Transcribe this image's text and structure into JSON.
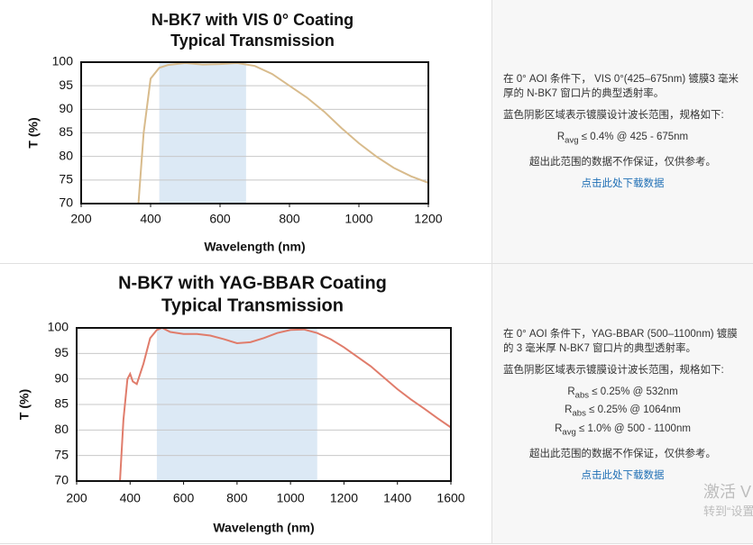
{
  "chart_data": [
    {
      "type": "line",
      "title": "N-BK7 with VIS 0° Coating",
      "subtitle": "Typical Transmission",
      "x_label": "Wavelength (nm)",
      "y_label": "T (%)",
      "x": [
        365,
        380,
        400,
        425,
        450,
        500,
        550,
        600,
        650,
        700,
        750,
        800,
        850,
        900,
        950,
        1000,
        1050,
        1100,
        1150,
        1200
      ],
      "series": [
        {
          "color": "#d8bb8c",
          "values": [
            70,
            85,
            96.5,
            98.8,
            99.4,
            99.8,
            99.5,
            99.6,
            99.8,
            99.2,
            97.5,
            95,
            92.5,
            89.5,
            86,
            82.8,
            80,
            77.6,
            75.8,
            74.4
          ]
        }
      ],
      "shaded_range": [
        425,
        675
      ],
      "shade_color": "#dce9f5",
      "xlim": [
        200,
        1200
      ],
      "ylim": [
        70,
        100
      ],
      "xticks": [
        200,
        400,
        600,
        800,
        1000,
        1200
      ],
      "yticks": [
        70,
        75,
        80,
        85,
        90,
        95,
        100
      ],
      "grid": true
    },
    {
      "type": "line",
      "title": "N-BK7 with YAG-BBAR Coating",
      "subtitle": "Typical Transmission",
      "x_label": "Wavelength (nm)",
      "y_label": "T (%)",
      "x": [
        362,
        375,
        390,
        400,
        410,
        425,
        450,
        475,
        500,
        520,
        550,
        600,
        650,
        700,
        750,
        800,
        850,
        900,
        950,
        1000,
        1050,
        1100,
        1150,
        1200,
        1300,
        1400,
        1450,
        1500,
        1550,
        1600
      ],
      "series": [
        {
          "color": "#e07c6b",
          "values": [
            70,
            82,
            90,
            91,
            89.5,
            89,
            93,
            98,
            99.6,
            100,
            99.2,
            98.8,
            98.8,
            98.5,
            97.8,
            97,
            97.2,
            98,
            99,
            99.6,
            99.7,
            99,
            97.8,
            96.2,
            92.5,
            88,
            86,
            84.2,
            82.3,
            80.5
          ]
        }
      ],
      "shaded_range": [
        500,
        1100
      ],
      "shade_color": "#dce9f5",
      "xlim": [
        200,
        1600
      ],
      "ylim": [
        70,
        100
      ],
      "xticks": [
        200,
        400,
        600,
        800,
        1000,
        1200,
        1400,
        1600
      ],
      "yticks": [
        70,
        75,
        80,
        85,
        90,
        95,
        100
      ],
      "grid": true
    }
  ],
  "notes": [
    {
      "description": "在 0° AOI 条件下， VIS 0°(425–675nm) 镀膜3 毫米厚的 N-BK7 窗口片的典型透射率。",
      "spec_intro": "蓝色阴影区域表示镀膜设计波长范围，规格如下:",
      "specs": [
        {
          "symbol": "R",
          "sub": "avg",
          "text": " ≤ 0.4% @ 425 - 675nm"
        }
      ],
      "disclaimer": "超出此范围的数据不作保证，仅供参考。",
      "link": "点击此处下载数据"
    },
    {
      "description": "在 0° AOI 条件下，YAG-BBAR (500–1100nm) 镀膜的 3 毫米厚 N-BK7 窗口片的典型透射率。",
      "spec_intro": "蓝色阴影区域表示镀膜设计波长范围，规格如下:",
      "specs": [
        {
          "symbol": "R",
          "sub": "abs",
          "text": " ≤ 0.25% @ 532nm"
        },
        {
          "symbol": "R",
          "sub": "abs",
          "text": " ≤ 0.25% @ 1064nm"
        },
        {
          "symbol": "R",
          "sub": "avg",
          "text": " ≤ 1.0% @ 500 - 1100nm"
        }
      ],
      "disclaimer": "超出此范围的数据不作保证，仅供参考。",
      "link": "点击此处下载数据"
    }
  ],
  "watermark": [
    "激活 V",
    "转到“设置”"
  ]
}
